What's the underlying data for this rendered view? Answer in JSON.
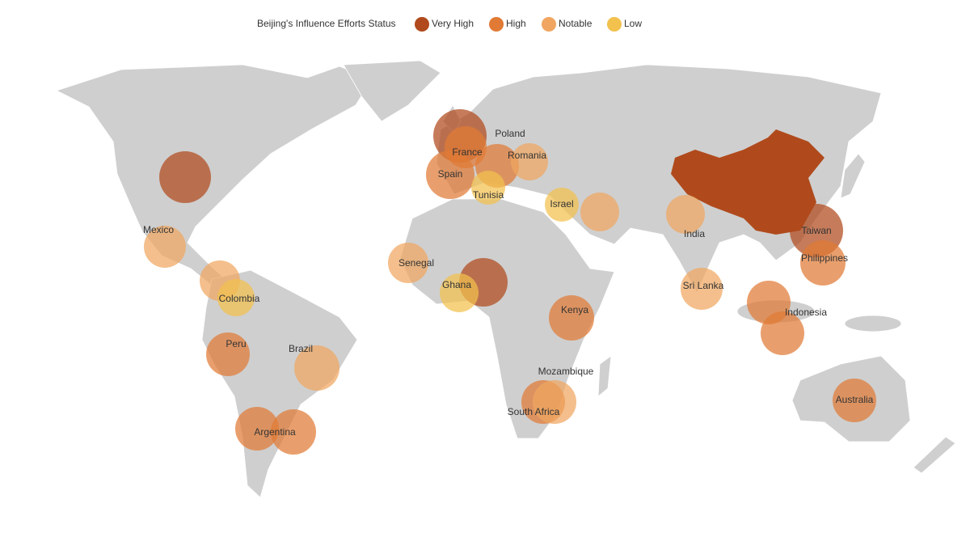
{
  "legend": {
    "title": "Beijing's Influence Efforts Status",
    "items": [
      {
        "label": "Very High",
        "color": "#b04a1c"
      },
      {
        "label": "High",
        "color": "#e07a35"
      },
      {
        "label": "Notable",
        "color": "#f0a660"
      },
      {
        "label": "Low",
        "color": "#f2c14e"
      }
    ]
  },
  "markers": [
    {
      "label": null,
      "status": "Very High"
    },
    {
      "label": "Mexico",
      "status": "Notable"
    },
    {
      "label": null,
      "status": "Notable"
    },
    {
      "label": "Colombia",
      "status": "Low"
    },
    {
      "label": "Peru",
      "status": "High"
    },
    {
      "label": "Brazil",
      "status": "Notable"
    },
    {
      "label": null,
      "status": "High"
    },
    {
      "label": "Argentina",
      "status": "High"
    },
    {
      "label": null,
      "status": "Very High"
    },
    {
      "label": "France",
      "status": "High"
    },
    {
      "label": "Poland",
      "status": "High"
    },
    {
      "label": "Spain",
      "status": "High"
    },
    {
      "label": "Romania",
      "status": "Notable"
    },
    {
      "label": "Tunisia",
      "status": "Low"
    },
    {
      "label": "Israel",
      "status": "Low"
    },
    {
      "label": null,
      "status": "Notable"
    },
    {
      "label": "Senegal",
      "status": "Notable"
    },
    {
      "label": null,
      "status": "Very High"
    },
    {
      "label": "Ghana",
      "status": "Low"
    },
    {
      "label": "Kenya",
      "status": "High"
    },
    {
      "label": "South Africa",
      "status": "High"
    },
    {
      "label": "Mozambique",
      "status": "Notable"
    },
    {
      "label": "India",
      "status": "Notable"
    },
    {
      "label": "Sri Lanka",
      "status": "Notable"
    },
    {
      "label": "Taiwan",
      "status": "Very High"
    },
    {
      "label": "Philippines",
      "status": "High"
    },
    {
      "label": "Indonesia",
      "status": "High"
    },
    {
      "label": null,
      "status": "High"
    },
    {
      "label": "Australia",
      "status": "High"
    }
  ],
  "regions": [
    {
      "status": "Very High"
    }
  ]
}
